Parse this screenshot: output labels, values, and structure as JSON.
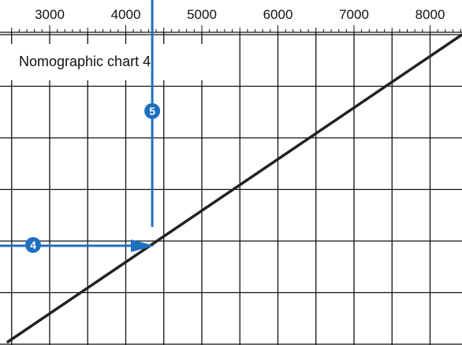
{
  "title": "Nomographic chart 4",
  "axis": {
    "ticks": [
      3000,
      4000,
      5000,
      6000,
      7000,
      8000
    ],
    "range": [
      2500,
      8500
    ],
    "minor_per_major": 10
  },
  "grid": {
    "major_per_major_tick": 2,
    "horizontal_rows": 6
  },
  "colors": {
    "grid": "#111111",
    "diagonal": "#222222",
    "indicator": "#1f6fc0",
    "text": "#111111"
  },
  "steps": [
    {
      "number": "4",
      "direction": "arrow-right"
    },
    {
      "number": "5",
      "direction": "arrow-up"
    }
  ],
  "reading": {
    "x_value": 4400
  }
}
